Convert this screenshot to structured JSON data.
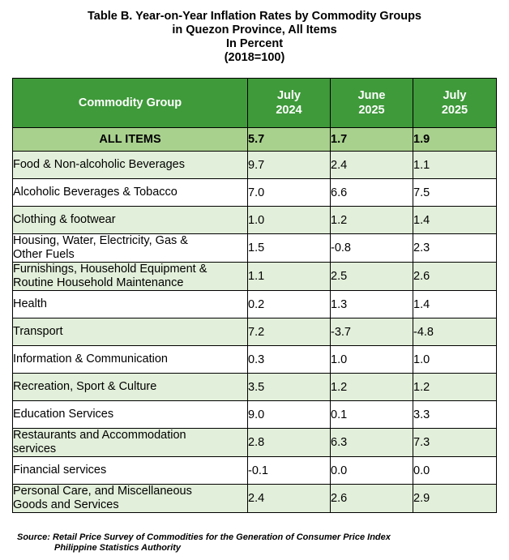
{
  "title": {
    "line1": "Table B. Year-on-Year Inflation Rates by Commodity Groups",
    "line2": "in Quezon Province, All Items",
    "line3": "In Percent",
    "line4": "(2018=100)"
  },
  "table": {
    "headers": {
      "group": "Commodity Group",
      "col1_line1": "July",
      "col1_line2": "2024",
      "col2_line1": "June",
      "col2_line2": "2025",
      "col3_line1": "July",
      "col3_line2": "2025"
    },
    "all_items": {
      "label": "ALL ITEMS",
      "v1": "5.7",
      "v2": "1.7",
      "v3": "1.9"
    },
    "rows": [
      {
        "group": "Food & Non-alcoholic Beverages",
        "v1": "9.7",
        "v2": "2.4",
        "v3": "1.1"
      },
      {
        "group": "Alcoholic Beverages & Tobacco",
        "v1": "7.0",
        "v2": "6.6",
        "v3": "7.5"
      },
      {
        "group": "Clothing & footwear",
        "v1": "1.0",
        "v2": "1.2",
        "v3": "1.4"
      },
      {
        "group_line1": "Housing, Water, Electricity, Gas &",
        "group_line2": "Other Fuels",
        "v1": "1.5",
        "v2": "-0.8",
        "v3": "2.3"
      },
      {
        "group_line1": "Furnishings, Household Equipment &",
        "group_line2": "Routine Household Maintenance",
        "v1": "1.1",
        "v2": "2.5",
        "v3": "2.6"
      },
      {
        "group": "Health",
        "v1": "0.2",
        "v2": "1.3",
        "v3": "1.4"
      },
      {
        "group": "Transport",
        "v1": "7.2",
        "v2": "-3.7",
        "v3": "-4.8"
      },
      {
        "group": "Information & Communication",
        "v1": "0.3",
        "v2": "1.0",
        "v3": "1.0"
      },
      {
        "group": "Recreation, Sport & Culture",
        "v1": "3.5",
        "v2": "1.2",
        "v3": "1.2"
      },
      {
        "group": "Education Services",
        "v1": "9.0",
        "v2": "0.1",
        "v3": "3.3"
      },
      {
        "group_line1": "Restaurants and Accommodation",
        "group_line2": "services",
        "v1": "2.8",
        "v2": "6.3",
        "v3": "7.3"
      },
      {
        "group": "Financial services",
        "v1": "-0.1",
        "v2": "0.0",
        "v3": "0.0"
      },
      {
        "group_line1": "Personal Care, and Miscellaneous",
        "group_line2": "Goods and Services",
        "v1": "2.4",
        "v2": "2.6",
        "v3": "2.9"
      }
    ]
  },
  "source": {
    "line1": "Source: Retail Price Survey of Commodities for the Generation of Consumer Price Index",
    "line2": "Philippine Statistics Authority"
  },
  "colors": {
    "header_green": "#3f9a3a",
    "all_items_green": "#a9d18e",
    "row_shade": "#e2efda"
  }
}
